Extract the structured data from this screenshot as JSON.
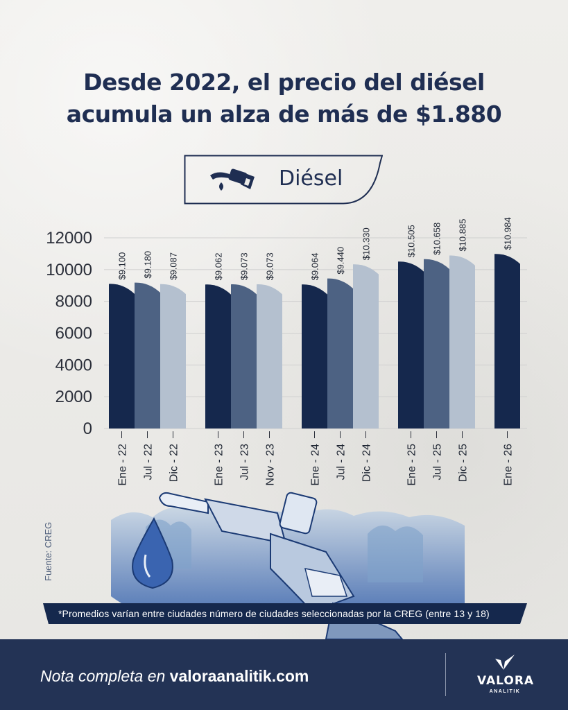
{
  "header": {
    "title_line1": "Desde 2022, el precio del diésel",
    "title_line2": "acumula un alza de más de $1.880"
  },
  "legend": {
    "label": "Diésel",
    "icon": "fuel-nozzle-icon"
  },
  "chart_data": {
    "type": "bar",
    "title": "",
    "xlabel": "",
    "ylabel": "",
    "ylim": [
      0,
      12000
    ],
    "yticks": [
      "0",
      "2000",
      "4000",
      "6000",
      "8000",
      "10000",
      "12000"
    ],
    "grid": true,
    "categories": [
      "Ene - 22",
      "Jul - 22",
      "Dic - 22",
      "Ene - 23",
      "Jul - 23",
      "Nov - 23",
      "Ene - 24",
      "Jul - 24",
      "Dic - 24",
      "Ene - 25",
      "Jul - 25",
      "Dic - 25",
      "Ene - 26"
    ],
    "values": [
      9100,
      9180,
      9087,
      9062,
      9073,
      9073,
      9064,
      9440,
      10330,
      10505,
      10658,
      10885,
      10984
    ],
    "data_labels": [
      "$9.100",
      "$9.180",
      "$9.087",
      "$9.062",
      "$9.073",
      "$9.073",
      "$9.064",
      "$9.440",
      "$10.330",
      "$10.505",
      "$10.658",
      "$10.885",
      "$10.984"
    ],
    "groups": [
      [
        0,
        1,
        2
      ],
      [
        3,
        4,
        5
      ],
      [
        6,
        7,
        8
      ],
      [
        9,
        10,
        11
      ],
      [
        12
      ]
    ],
    "bar_colors": [
      "#15284d",
      "#4d6283",
      "#b4c0cf"
    ]
  },
  "source": "Fuente: CREG",
  "footnote": "*Promedios varían entre ciudades número de ciudades seleccionadas por la CREG (entre 13 y 18)",
  "footer": {
    "prefix": "Nota completa en ",
    "site": "valoraanalitik.com",
    "logo_text": "VALORA",
    "logo_sub": "ANALITIK",
    "background": "#233355"
  },
  "colors": {
    "title": "#1f2e52",
    "accent_dark": "#15284d"
  }
}
